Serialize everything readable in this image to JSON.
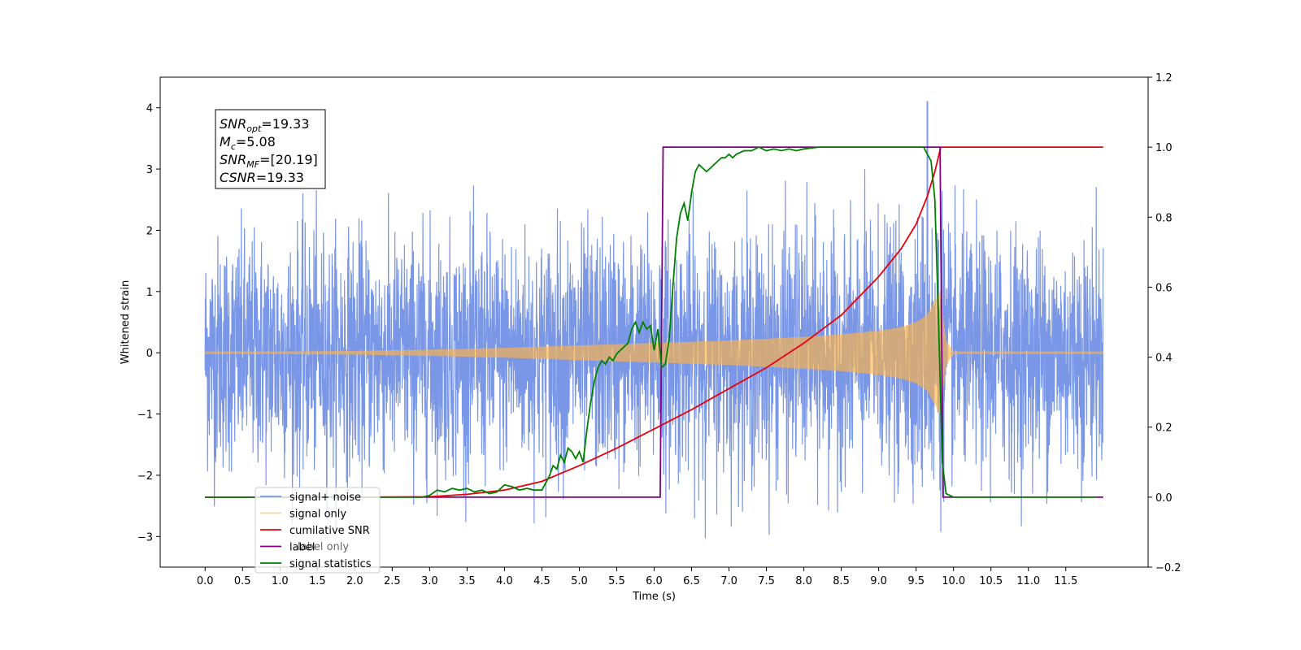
{
  "chart_data": {
    "type": "line",
    "title": "",
    "xlabel": "Time (s)",
    "ylabel_left": "Whitened strain",
    "ylabel_right": "",
    "xlim": [
      -0.6,
      12.6
    ],
    "ylim_left": [
      -3.5,
      4.5
    ],
    "ylim_right": [
      -0.2,
      1.2
    ],
    "x_ticks": [
      0.0,
      0.5,
      1.0,
      1.5,
      2.0,
      2.5,
      3.0,
      3.5,
      4.0,
      4.5,
      5.0,
      5.5,
      6.0,
      6.5,
      7.0,
      7.5,
      8.0,
      8.5,
      9.0,
      9.5,
      10.0,
      10.5,
      11.0,
      11.5
    ],
    "x_tick_labels": [
      "0.0",
      "0.5",
      "1.0",
      "1.5",
      "2.0",
      "2.5",
      "3.0",
      "3.5",
      "4.0",
      "4.5",
      "5.0",
      "5.5",
      "6.0",
      "6.5",
      "7.0",
      "7.5",
      "8.0",
      "8.5",
      "9.0",
      "9.5",
      "10.0",
      "10.5",
      "11.0",
      "11.5"
    ],
    "y_left_ticks": [
      -3,
      -2,
      -1,
      0,
      1,
      2,
      3,
      4
    ],
    "y_left_tick_labels": [
      "−3",
      "−2",
      "−1",
      "0",
      "1",
      "2",
      "3",
      "4"
    ],
    "y_right_ticks": [
      -0.2,
      0.0,
      0.2,
      0.4,
      0.6,
      0.8,
      1.0,
      1.2
    ],
    "y_right_tick_labels": [
      "−0.2",
      "0.0",
      "0.2",
      "0.4",
      "0.6",
      "0.8",
      "1.0",
      "1.2"
    ],
    "grid": false,
    "legend_position": "lower-left",
    "annotation_box": [
      {
        "symbol": "SNR",
        "subscript": "opt",
        "value": "=19.33"
      },
      {
        "symbol": "M",
        "subscript": "c",
        "value": "=5.08"
      },
      {
        "symbol": "SNR",
        "subscript": "MF",
        "value": "=[20.19]"
      },
      {
        "symbol": "CSNR",
        "subscript": "",
        "value": "=19.33"
      }
    ],
    "series": [
      {
        "name": "signal+ noise",
        "axis": "left",
        "color": "#7a96e6",
        "style": "dense noise around 0, range approx -3.2 to 4.1",
        "approx_envelope": {
          "x": [
            0,
            12
          ],
          "min": -2.7,
          "max": 2.8
        },
        "peak": {
          "x": 9.65,
          "y": 4.1
        }
      },
      {
        "name": "signal only",
        "axis": "left",
        "color": "#ffb347",
        "style": "chirp oscillation, amplitude grows until merger",
        "envelope_x": [
          0.0,
          1.0,
          2.0,
          3.0,
          4.0,
          5.0,
          6.0,
          7.0,
          8.0,
          8.5,
          9.0,
          9.3,
          9.5,
          9.65,
          9.75,
          9.82,
          9.9,
          10.0,
          12.0
        ],
        "envelope_amplitude": [
          0.02,
          0.02,
          0.03,
          0.05,
          0.08,
          0.12,
          0.16,
          0.2,
          0.26,
          0.3,
          0.36,
          0.42,
          0.5,
          0.62,
          0.85,
          1.0,
          0.2,
          0.02,
          0.02
        ]
      },
      {
        "name": "cumilative SNR",
        "axis": "right",
        "color": "#e8000b",
        "x": [
          0.0,
          2.0,
          3.0,
          3.5,
          4.0,
          4.5,
          5.0,
          5.5,
          6.0,
          6.5,
          7.0,
          7.5,
          8.0,
          8.5,
          9.0,
          9.3,
          9.5,
          9.65,
          9.75,
          9.83,
          12.0
        ],
        "values": [
          0.0,
          0.0,
          0.001,
          0.008,
          0.02,
          0.045,
          0.09,
          0.14,
          0.195,
          0.25,
          0.31,
          0.37,
          0.44,
          0.52,
          0.63,
          0.71,
          0.78,
          0.86,
          0.93,
          1.0,
          1.0
        ]
      },
      {
        "name": "label",
        "axis": "right",
        "color": "#800080",
        "x": [
          0.0,
          6.08,
          6.12,
          9.82,
          9.86,
          12.0
        ],
        "values": [
          0.0,
          0.0,
          1.0,
          1.0,
          0.0,
          0.0
        ]
      },
      {
        "name": "signal statistics",
        "axis": "right",
        "color": "#008000",
        "x": [
          0.0,
          2.9,
          3.0,
          3.1,
          3.2,
          3.3,
          3.4,
          3.5,
          3.6,
          3.7,
          3.8,
          3.9,
          4.0,
          4.1,
          4.2,
          4.3,
          4.4,
          4.5,
          4.6,
          4.65,
          4.7,
          4.75,
          4.8,
          4.85,
          4.9,
          4.95,
          5.0,
          5.05,
          5.1,
          5.15,
          5.2,
          5.25,
          5.3,
          5.35,
          5.4,
          5.45,
          5.5,
          5.55,
          5.6,
          5.65,
          5.7,
          5.75,
          5.8,
          5.85,
          5.9,
          5.95,
          6.0,
          6.05,
          6.1,
          6.15,
          6.2,
          6.25,
          6.3,
          6.35,
          6.4,
          6.45,
          6.5,
          6.55,
          6.6,
          6.65,
          6.7,
          6.75,
          6.8,
          6.85,
          6.9,
          6.95,
          7.0,
          7.05,
          7.1,
          7.2,
          7.3,
          7.4,
          7.5,
          7.6,
          7.7,
          7.8,
          7.9,
          8.0,
          8.2,
          8.4,
          8.6,
          8.8,
          9.0,
          9.2,
          9.4,
          9.6,
          9.7,
          9.75,
          9.8,
          9.85,
          9.9,
          10.0,
          11.0,
          11.9
        ],
        "values": [
          0.0,
          0.0,
          0.005,
          0.02,
          0.015,
          0.025,
          0.02,
          0.025,
          0.015,
          0.02,
          0.01,
          0.015,
          0.035,
          0.03,
          0.02,
          0.025,
          0.02,
          0.02,
          0.06,
          0.09,
          0.08,
          0.12,
          0.1,
          0.14,
          0.13,
          0.11,
          0.13,
          0.1,
          0.19,
          0.27,
          0.33,
          0.37,
          0.39,
          0.38,
          0.4,
          0.39,
          0.41,
          0.42,
          0.43,
          0.44,
          0.48,
          0.5,
          0.47,
          0.5,
          0.48,
          0.49,
          0.42,
          0.48,
          0.37,
          0.38,
          0.45,
          0.6,
          0.74,
          0.81,
          0.84,
          0.79,
          0.87,
          0.93,
          0.95,
          0.94,
          0.93,
          0.94,
          0.95,
          0.96,
          0.97,
          0.97,
          0.98,
          0.97,
          0.98,
          0.99,
          0.99,
          1.0,
          0.99,
          0.995,
          0.99,
          0.995,
          0.99,
          0.995,
          1.0,
          1.0,
          1.0,
          1.0,
          1.0,
          1.0,
          1.0,
          1.0,
          0.96,
          0.85,
          0.5,
          0.1,
          0.01,
          0.0,
          0.0,
          0.0
        ]
      }
    ]
  },
  "legend": {
    "items": [
      {
        "label": "signal+ noise",
        "color": "#7a96e6"
      },
      {
        "label": "signal only",
        "color": "#ffb347"
      },
      {
        "label": "cumilative SNR",
        "color": "#e8000b"
      },
      {
        "label": "label",
        "color": "#800080"
      },
      {
        "label": "signal statistics",
        "color": "#008000"
      }
    ],
    "occluded_label": "label only"
  }
}
